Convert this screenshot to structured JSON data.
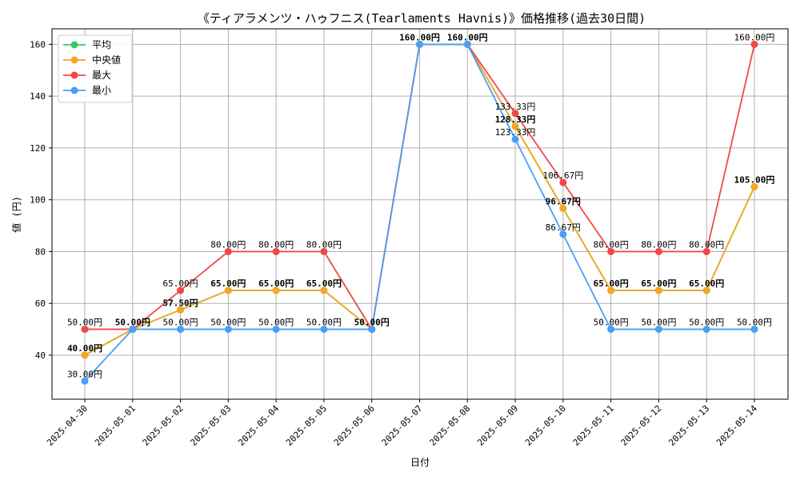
{
  "chart_data": {
    "type": "line",
    "title": "《ティアラメンツ・ハゥフニス(Tearlaments Havnis)》価格推移(過去30日間)",
    "xlabel": "日付",
    "ylabel": "値 (円)",
    "ylim": [
      23,
      166
    ],
    "yticks": [
      40,
      60,
      80,
      100,
      120,
      140,
      160
    ],
    "grid": true,
    "legend_position": "top-left",
    "unit_suffix": "円",
    "categories": [
      "2025-04-30",
      "2025-05-01",
      "2025-05-02",
      "2025-05-03",
      "2025-05-04",
      "2025-05-05",
      "2025-05-06",
      "2025-05-07",
      "2025-05-08",
      "2025-05-09",
      "2025-05-10",
      "2025-05-11",
      "2025-05-12",
      "2025-05-13",
      "2025-05-14"
    ],
    "series": [
      {
        "name": "平均",
        "color": "#33cc66",
        "values": [
          40,
          50,
          57.5,
          65,
          65,
          65,
          50,
          160,
          160,
          128.33,
          96.67,
          65,
          65,
          65,
          105
        ]
      },
      {
        "name": "中央値",
        "color": "#f5a623",
        "values": [
          40,
          50,
          57.5,
          65,
          65,
          65,
          50,
          160,
          160,
          128.33,
          96.67,
          65,
          65,
          65,
          105
        ]
      },
      {
        "name": "最大",
        "color": "#f04848",
        "values": [
          50,
          50,
          65,
          80,
          80,
          80,
          50,
          160,
          160,
          133.33,
          106.67,
          80,
          80,
          80,
          160
        ]
      },
      {
        "name": "最小",
        "color": "#4a9ef5",
        "values": [
          30,
          50,
          50,
          50,
          50,
          50,
          50,
          160,
          160,
          123.33,
          86.67,
          50,
          50,
          50,
          50
        ]
      }
    ]
  }
}
